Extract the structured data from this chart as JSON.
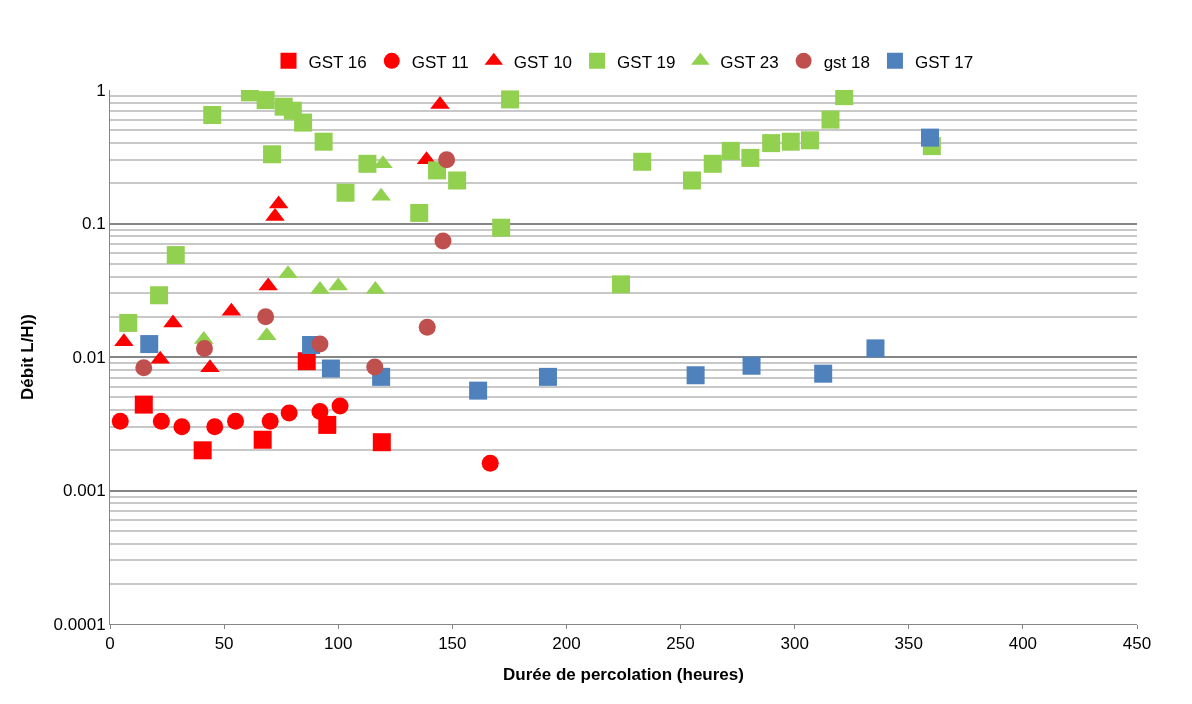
{
  "chart_data": {
    "type": "scatter",
    "xlabel": "Durée de percolation (heures)",
    "ylabel": "Débit L/H))",
    "log": "y",
    "grid": "y",
    "legend": "top",
    "xlim": [
      0,
      450
    ],
    "xticks": [
      0,
      50,
      100,
      150,
      200,
      250,
      300,
      350,
      400,
      450
    ],
    "ylim": [
      0.0001,
      1
    ],
    "yticks": [
      0.0001,
      0.001,
      0.01,
      0.1,
      1
    ],
    "series": [
      {
        "name": "GST 16",
        "color": "#ff0000",
        "marker": "square",
        "x": [
          14.8,
          40.6,
          66.9,
          86.2,
          95.2,
          119.1
        ],
        "values": [
          0.0044,
          0.002,
          0.0024,
          0.0093,
          0.0031,
          0.0023
        ]
      },
      {
        "name": "GST 11",
        "color": "#ff0000",
        "marker": "circle",
        "x": [
          4.5,
          22.5,
          31.5,
          45.9,
          55,
          70.2,
          78.5,
          92,
          100.8,
          166.6
        ],
        "values": [
          0.0033,
          0.0033,
          0.003,
          0.003,
          0.0033,
          0.0033,
          0.0038,
          0.0039,
          0.0043,
          0.0016
        ]
      },
      {
        "name": "GST 10",
        "color": "#ff0000",
        "marker": "triangle",
        "x": [
          6.1,
          22,
          27.6,
          43.8,
          53.2,
          69.3,
          72.3,
          73.9,
          138.7,
          144.6
        ],
        "values": [
          0.013,
          0.0096,
          0.018,
          0.0083,
          0.022,
          0.034,
          0.113,
          0.14,
          0.3,
          0.78
        ]
      },
      {
        "name": "GST 19",
        "color": "#92d050",
        "marker": "square",
        "x": [
          8,
          21.5,
          28.8,
          44.8,
          61.3,
          68.2,
          71,
          76.1,
          80.1,
          84.6,
          93.6,
          103.2,
          112.8,
          135.5,
          143.3,
          152.1,
          171.4,
          175.3,
          223.9,
          233.2,
          255,
          264.1,
          272,
          280.6,
          289.7,
          298.3,
          306.7,
          315.7,
          321.7,
          360.1
        ],
        "values": [
          0.018,
          0.029,
          0.058,
          0.65,
          0.96,
          0.84,
          0.33,
          0.75,
          0.7,
          0.57,
          0.41,
          0.17,
          0.28,
          0.12,
          0.25,
          0.21,
          0.093,
          0.85,
          0.035,
          0.29,
          0.21,
          0.28,
          0.35,
          0.31,
          0.4,
          0.41,
          0.42,
          0.6,
          0.9,
          0.38
        ]
      },
      {
        "name": "GST 23",
        "color": "#92d050",
        "marker": "triangle",
        "x": [
          41.1,
          68.7,
          78,
          92,
          100,
          116.3,
          118.8,
          119.6
        ],
        "values": [
          0.0135,
          0.0144,
          0.042,
          0.032,
          0.034,
          0.032,
          0.16,
          0.28
        ]
      },
      {
        "name": "gst 18",
        "color": "#c0504d",
        "marker": "circle",
        "x": [
          14.8,
          41.4,
          68.2,
          92,
          116,
          139,
          145.9,
          147.5
        ],
        "values": [
          0.0083,
          0.0116,
          0.02,
          0.0125,
          0.0084,
          0.0167,
          0.074,
          0.3
        ]
      },
      {
        "name": "GST 17",
        "color": "#4f81bd",
        "marker": "square",
        "x": [
          17.2,
          88.1,
          96.8,
          118.8,
          161.3,
          191.9,
          256.6,
          281.1,
          312.5,
          335.4,
          359.3
        ],
        "values": [
          0.0125,
          0.0123,
          0.0082,
          0.0071,
          0.0056,
          0.0071,
          0.0073,
          0.0086,
          0.0075,
          0.0116,
          0.44
        ]
      }
    ]
  }
}
